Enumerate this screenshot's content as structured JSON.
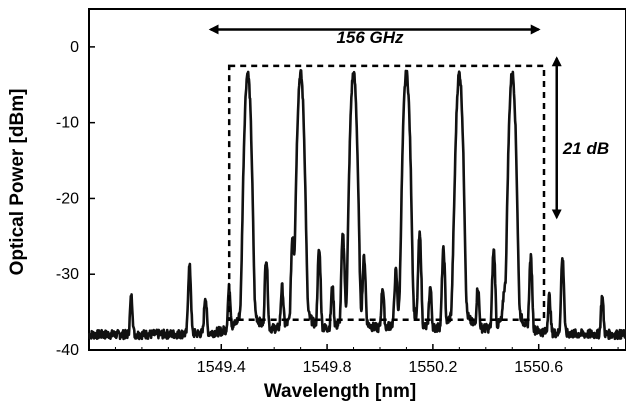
{
  "chart_data": {
    "type": "line",
    "title": "",
    "xlabel": "Wavelength [nm]",
    "ylabel": "Optical Power [dBm]",
    "xlim": [
      1548.9,
      1550.93
    ],
    "ylim": [
      -40,
      5
    ],
    "xticks": [
      1549.4,
      1549.8,
      1550.2,
      1550.6
    ],
    "xtick_labels": [
      "1549.4",
      "1549.8",
      "1550.2",
      "1550.6"
    ],
    "yticks": [
      0,
      -10,
      -20,
      -30,
      -40
    ],
    "ytick_labels": [
      "0",
      "-10",
      "-20",
      "-30",
      "-40"
    ],
    "grid": false,
    "line_color": "#111111",
    "noise_floor_dBm": -38,
    "main_peaks": {
      "x": [
        1549.5,
        1549.7,
        1549.9,
        1550.1,
        1550.3,
        1550.5
      ],
      "y": [
        -3.5,
        -3.5,
        -3.5,
        -3.5,
        -3.5,
        -3.5
      ]
    },
    "side_peaks": {
      "x": [
        1549.06,
        1549.28,
        1549.34,
        1549.43,
        1549.57,
        1549.63,
        1549.67,
        1549.77,
        1549.82,
        1549.86,
        1549.94,
        1550.01,
        1550.06,
        1550.15,
        1550.19,
        1550.24,
        1550.28,
        1550.37,
        1550.43,
        1550.47,
        1550.57,
        1550.64,
        1550.69,
        1550.84
      ],
      "y": [
        -33,
        -29,
        -33,
        -32,
        -28,
        -32,
        -25,
        -27,
        -32,
        -25,
        -28,
        -32,
        -30,
        -25,
        -32,
        -27,
        -28,
        -32,
        -27,
        -33,
        -28,
        -33,
        -28,
        -33
      ]
    },
    "annotations": {
      "span_label": "156 GHz",
      "span_x": [
        1549.36,
        1550.6
      ],
      "depth_label": "21 dB",
      "depth_y": [
        -1.5,
        -22.5
      ],
      "box_x": [
        1549.43,
        1550.62
      ],
      "box_y": [
        -2.5,
        -36
      ]
    }
  }
}
